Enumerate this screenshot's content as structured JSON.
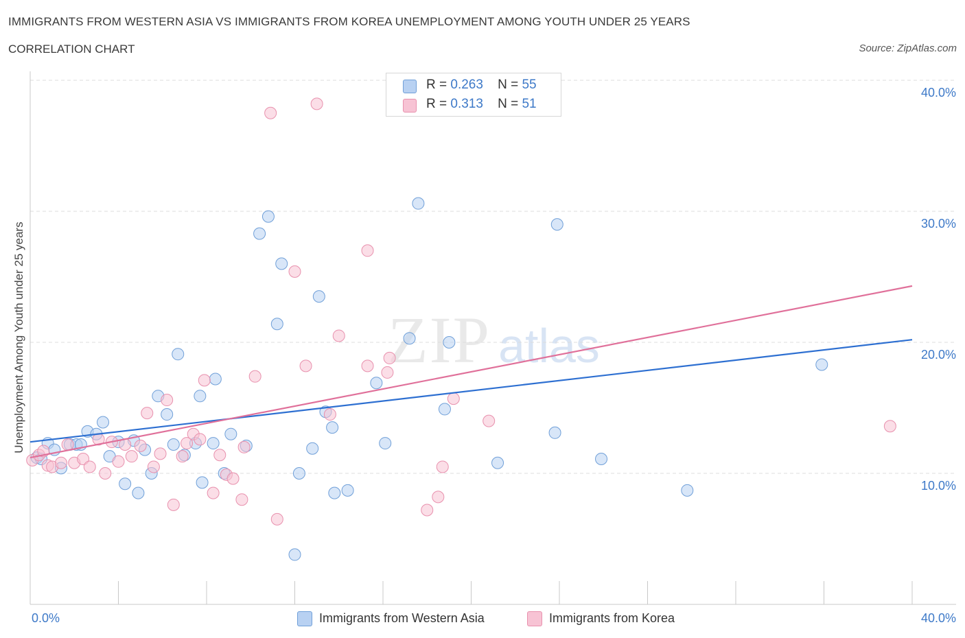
{
  "header": {
    "title": "IMMIGRANTS FROM WESTERN ASIA VS IMMIGRANTS FROM KOREA UNEMPLOYMENT AMONG YOUTH UNDER 25 YEARS",
    "subtitle": "CORRELATION CHART",
    "source": "Source: ZipAtlas.com"
  },
  "watermark": {
    "zip": "ZIP",
    "atlas": "atlas"
  },
  "legend_top": {
    "rows": [
      {
        "r_label": "R =",
        "r_value": "0.263",
        "n_label": "N =",
        "n_value": "55"
      },
      {
        "r_label": "R =",
        "r_value": "0.313",
        "n_label": "N =",
        "n_value": "51"
      }
    ]
  },
  "colors": {
    "blue_fill": "#b8d1f2",
    "blue_stroke": "#6f9fd8",
    "blue_line": "#2d6fd1",
    "pink_fill": "#f7c3d4",
    "pink_stroke": "#e890ad",
    "pink_line": "#e0709a",
    "tick_label": "#3d79c8",
    "grid": "#dddddd"
  },
  "chart_data": {
    "type": "scatter",
    "title": "IMMIGRANTS FROM WESTERN ASIA VS IMMIGRANTS FROM KOREA UNEMPLOYMENT AMONG YOUTH UNDER 25 YEARS",
    "xlabel": "",
    "ylabel": "Unemployment Among Youth under 25 years",
    "xlim": [
      0,
      40
    ],
    "ylim": [
      0,
      40
    ],
    "x_tick_labels": [
      "0.0%",
      "40.0%"
    ],
    "y_ticks": [
      10,
      20,
      30,
      40
    ],
    "y_tick_labels": [
      "10.0%",
      "20.0%",
      "30.0%",
      "40.0%"
    ],
    "grid": true,
    "legend_position": "bottom",
    "series": [
      {
        "name": "Immigrants from Western Asia",
        "color": "#b8d1f2",
        "R": 0.263,
        "N": 55,
        "trend": {
          "x": [
            0,
            40
          ],
          "y": [
            12.4,
            20.2
          ]
        },
        "points": [
          [
            0.3,
            11.2
          ],
          [
            0.5,
            11.1
          ],
          [
            0.8,
            12.3
          ],
          [
            1.1,
            11.8
          ],
          [
            1.4,
            10.4
          ],
          [
            1.8,
            12.2
          ],
          [
            2.1,
            12.2
          ],
          [
            2.3,
            12.2
          ],
          [
            2.6,
            13.2
          ],
          [
            3.0,
            13.0
          ],
          [
            3.3,
            13.9
          ],
          [
            3.6,
            11.3
          ],
          [
            4.0,
            12.4
          ],
          [
            4.3,
            9.2
          ],
          [
            4.7,
            12.5
          ],
          [
            4.9,
            8.5
          ],
          [
            5.2,
            11.8
          ],
          [
            5.5,
            10.0
          ],
          [
            5.8,
            15.9
          ],
          [
            6.2,
            14.5
          ],
          [
            6.5,
            12.2
          ],
          [
            6.7,
            19.1
          ],
          [
            7.0,
            11.4
          ],
          [
            7.5,
            12.3
          ],
          [
            7.7,
            15.9
          ],
          [
            7.8,
            9.3
          ],
          [
            8.3,
            12.3
          ],
          [
            8.4,
            17.2
          ],
          [
            8.8,
            10.0
          ],
          [
            9.1,
            13.0
          ],
          [
            9.8,
            12.1
          ],
          [
            10.4,
            28.3
          ],
          [
            10.8,
            29.6
          ],
          [
            11.2,
            21.4
          ],
          [
            11.4,
            26.0
          ],
          [
            12.0,
            3.8
          ],
          [
            12.2,
            10.0
          ],
          [
            12.8,
            11.9
          ],
          [
            13.1,
            23.5
          ],
          [
            13.4,
            14.7
          ],
          [
            13.7,
            13.5
          ],
          [
            13.8,
            8.5
          ],
          [
            14.4,
            8.7
          ],
          [
            15.7,
            16.9
          ],
          [
            16.1,
            12.3
          ],
          [
            17.2,
            20.3
          ],
          [
            17.6,
            30.6
          ],
          [
            18.8,
            14.9
          ],
          [
            19.0,
            20.0
          ],
          [
            21.2,
            10.8
          ],
          [
            23.8,
            13.1
          ],
          [
            23.9,
            29.0
          ],
          [
            25.9,
            11.1
          ],
          [
            29.8,
            8.7
          ],
          [
            35.9,
            18.3
          ]
        ]
      },
      {
        "name": "Immigrants from Korea",
        "color": "#f7c3d4",
        "R": 0.313,
        "N": 51,
        "trend": {
          "x": [
            0,
            40
          ],
          "y": [
            11.2,
            24.3
          ]
        },
        "points": [
          [
            0.1,
            11.0
          ],
          [
            0.4,
            11.4
          ],
          [
            0.6,
            11.7
          ],
          [
            0.8,
            10.6
          ],
          [
            1.0,
            10.5
          ],
          [
            1.4,
            10.8
          ],
          [
            1.7,
            12.2
          ],
          [
            2.0,
            10.8
          ],
          [
            2.4,
            11.1
          ],
          [
            2.7,
            10.5
          ],
          [
            3.1,
            12.6
          ],
          [
            3.4,
            10.0
          ],
          [
            3.7,
            12.4
          ],
          [
            4.0,
            10.9
          ],
          [
            4.3,
            12.2
          ],
          [
            4.6,
            11.3
          ],
          [
            5.0,
            12.1
          ],
          [
            5.3,
            14.6
          ],
          [
            5.6,
            10.5
          ],
          [
            5.9,
            11.5
          ],
          [
            6.2,
            15.6
          ],
          [
            6.5,
            7.6
          ],
          [
            6.9,
            11.3
          ],
          [
            7.1,
            12.3
          ],
          [
            7.4,
            13.0
          ],
          [
            7.7,
            12.6
          ],
          [
            7.9,
            17.1
          ],
          [
            8.3,
            8.5
          ],
          [
            8.6,
            11.4
          ],
          [
            8.9,
            9.9
          ],
          [
            9.2,
            9.6
          ],
          [
            9.6,
            8.0
          ],
          [
            9.7,
            12.0
          ],
          [
            10.2,
            17.4
          ],
          [
            10.9,
            37.5
          ],
          [
            11.2,
            6.5
          ],
          [
            12.0,
            25.4
          ],
          [
            12.5,
            18.2
          ],
          [
            13.0,
            38.2
          ],
          [
            13.6,
            14.5
          ],
          [
            14.0,
            20.5
          ],
          [
            15.3,
            18.2
          ],
          [
            15.3,
            27.0
          ],
          [
            16.2,
            17.7
          ],
          [
            16.3,
            18.8
          ],
          [
            18.0,
            7.2
          ],
          [
            18.5,
            8.2
          ],
          [
            18.7,
            10.5
          ],
          [
            19.2,
            15.7
          ],
          [
            20.8,
            14.0
          ],
          [
            39.0,
            13.6
          ]
        ]
      }
    ]
  },
  "legend_bottom": {
    "items": [
      "Immigrants from Western Asia",
      "Immigrants from Korea"
    ]
  }
}
